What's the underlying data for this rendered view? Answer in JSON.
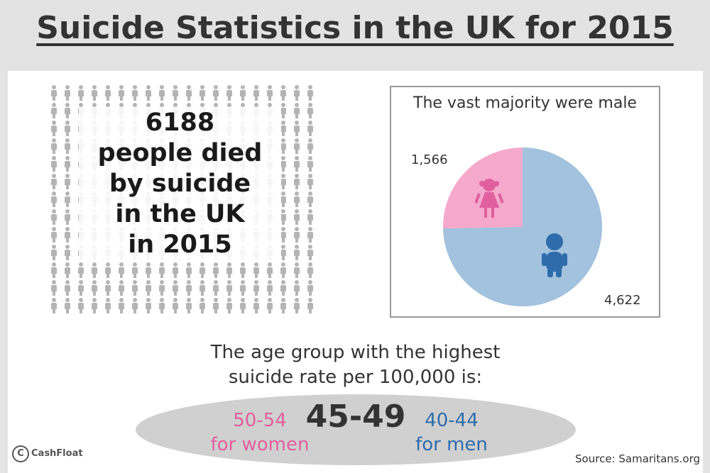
{
  "title": "Suicide Statistics in the UK for 2015",
  "headline": {
    "lines": [
      "6188",
      "people died",
      "by suicide",
      "in the UK",
      "in 2015"
    ]
  },
  "pictogram": {
    "icon": "person-icon",
    "color": "#b4b4b4"
  },
  "chart_data": {
    "type": "pie",
    "title": "The vast majority were male",
    "slices": [
      {
        "value": 1566,
        "label": "1,566",
        "color": "#f4a9cd",
        "icon": "girl-icon",
        "icon_color": "#e0609e"
      },
      {
        "value": 4622,
        "label": "4,622",
        "color": "#a2c2dd",
        "icon": "boy-icon",
        "icon_color": "#2e6cab"
      }
    ],
    "start_angle": "top, women slice counter-clockwise"
  },
  "age_group": {
    "intro_lines": [
      "The age group with the highest",
      "suicide rate per 100,000 is:"
    ],
    "women_range": "50-54",
    "women_label": "for women",
    "overall": "45-49",
    "men_range": "40-44",
    "men_label": "for men",
    "women_color": "#e0609e",
    "men_color": "#2e6cab"
  },
  "brand": {
    "logo_text": "CashFloat",
    "logo_icon": "cashfloat-logo-icon"
  },
  "source": "Source: Samaritans.org"
}
